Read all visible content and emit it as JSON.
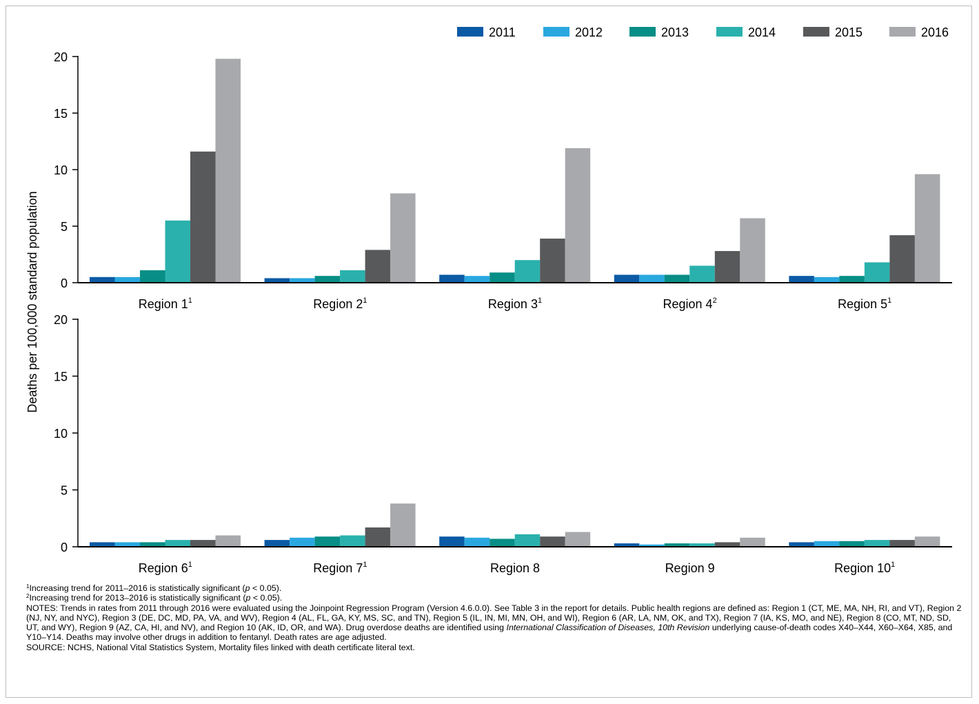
{
  "chart_data": {
    "type": "bar",
    "ylabel": "Deaths per 100,000 standard population",
    "ylim": [
      0,
      20
    ],
    "yticks": [
      0,
      5,
      10,
      15,
      20
    ],
    "legend_position": "top-right",
    "series_colors": [
      "#0b5aa5",
      "#29a8e0",
      "#078e86",
      "#2ab1ad",
      "#58595b",
      "#a7a9ac"
    ],
    "series_names": [
      "2011",
      "2012",
      "2013",
      "2014",
      "2015",
      "2016"
    ],
    "panels": [
      {
        "groups": [
          {
            "label": "Region 1",
            "sup": "1",
            "values": [
              0.5,
              0.5,
              1.1,
              5.5,
              11.6,
              19.8
            ]
          },
          {
            "label": "Region 2",
            "sup": "1",
            "values": [
              0.4,
              0.4,
              0.6,
              1.1,
              2.9,
              7.9
            ]
          },
          {
            "label": "Region 3",
            "sup": "1",
            "values": [
              0.7,
              0.6,
              0.9,
              2.0,
              3.9,
              11.9
            ]
          },
          {
            "label": "Region 4",
            "sup": "2",
            "values": [
              0.7,
              0.7,
              0.7,
              1.5,
              2.8,
              5.7
            ]
          },
          {
            "label": "Region 5",
            "sup": "1",
            "values": [
              0.6,
              0.5,
              0.6,
              1.8,
              4.2,
              9.6
            ]
          }
        ]
      },
      {
        "groups": [
          {
            "label": "Region 6",
            "sup": "1",
            "values": [
              0.4,
              0.4,
              0.4,
              0.6,
              0.6,
              1.0
            ]
          },
          {
            "label": "Region 7",
            "sup": "1",
            "values": [
              0.6,
              0.8,
              0.9,
              1.0,
              1.7,
              3.8
            ]
          },
          {
            "label": "Region 8",
            "sup": "",
            "values": [
              0.9,
              0.8,
              0.7,
              1.1,
              0.9,
              1.3
            ]
          },
          {
            "label": "Region 9",
            "sup": "",
            "values": [
              0.3,
              0.2,
              0.3,
              0.3,
              0.4,
              0.8
            ]
          },
          {
            "label": "Region 10",
            "sup": "1",
            "values": [
              0.4,
              0.5,
              0.5,
              0.6,
              0.6,
              0.9
            ]
          }
        ]
      }
    ]
  },
  "footnotes": {
    "fn1": {
      "sup": "1",
      "text_a": "Increasing trend for 2011–2016 is statistically significant (",
      "p": "p",
      "text_b": " < 0.05)."
    },
    "fn2": {
      "sup": "2",
      "text_a": "Increasing trend for 2013–2016 is statistically significant (",
      "p": "p",
      "text_b": " < 0.05)."
    },
    "notes_a": "NOTES: Trends in rates from 2011 through 2016 were evaluated using the Joinpoint Regression Program (Version 4.6.0.0). See Table 3 in the report for details. Public health regions are defined as: Region 1 (CT, ME, MA, NH, RI, and VT), Region 2 (NJ, NY, and NYC), Region 3 (DE, DC, MD, PA, VA, and WV), Region 4 (AL, FL, GA, KY, MS, SC, and TN), Region 5 (IL, IN, MI, MN, OH, and WI), Region 6 (AR, LA, NM, OK, and TX), Region 7 (IA, KS, MO, and NE), Region 8 (CO, MT, ND, SD, UT, and WY), Region 9 (AZ, CA, HI, and NV), and Region 10 (AK, ID, OR, and WA). Drug overdose deaths are identified using ",
    "notes_italic": "International Classification of Diseases, 10th Revision",
    "notes_b": " underlying cause-of-death codes X40–X44, X60–X64, X85, and Y10–Y14. Deaths may involve other drugs in addition to fentanyl. Death rates are age adjusted.",
    "source": "SOURCE: NCHS, National Vital Statistics System, Mortality files linked with death certificate literal text."
  }
}
